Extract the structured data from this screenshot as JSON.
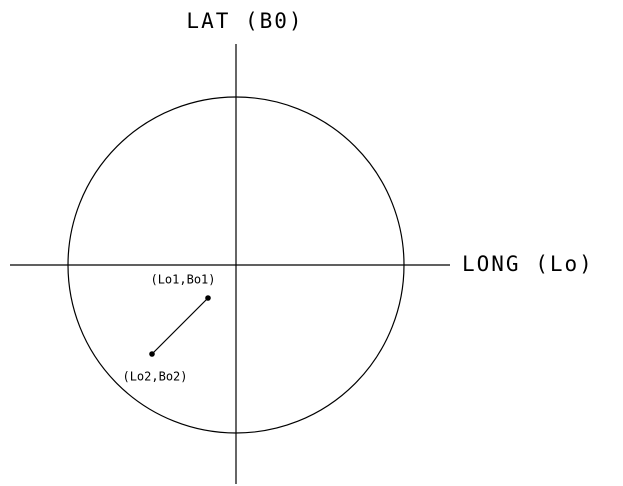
{
  "axes": {
    "vertical": "LAT (B0)",
    "horizontal": "LONG (Lo)"
  },
  "points": [
    {
      "label": "(Lo1,Bo1)"
    },
    {
      "label": "(Lo2,Bo2)"
    }
  ]
}
